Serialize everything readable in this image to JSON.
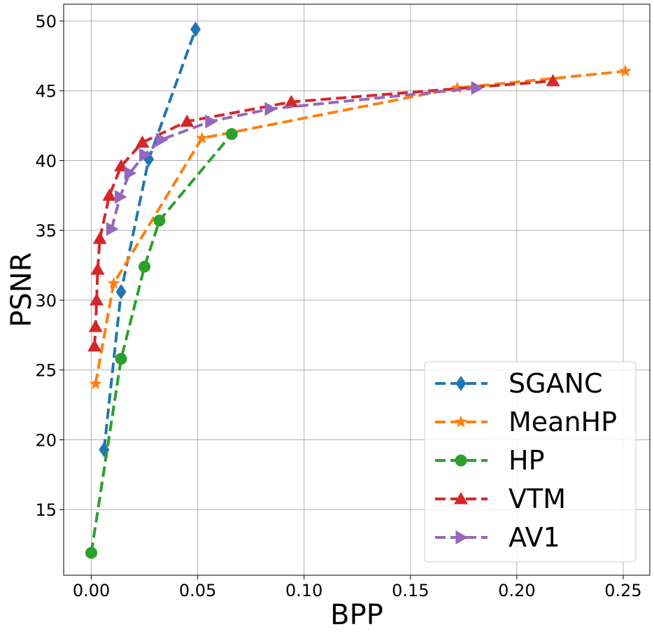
{
  "chart_data": {
    "type": "line",
    "title": "",
    "xlabel": "BPP",
    "ylabel": "PSNR",
    "xlim": [
      -0.013,
      0.2625
    ],
    "ylim": [
      10.3,
      51.2
    ],
    "xticks": [
      0.0,
      0.05,
      0.1,
      0.15,
      0.2,
      0.25
    ],
    "xtick_labels": [
      "0.00",
      "0.05",
      "0.10",
      "0.15",
      "0.20",
      "0.25"
    ],
    "yticks": [
      15,
      20,
      25,
      30,
      35,
      40,
      45,
      50
    ],
    "ytick_labels": [
      "15",
      "20",
      "25",
      "30",
      "35",
      "40",
      "45",
      "50"
    ],
    "grid": true,
    "legend_position": "lower-right",
    "series": [
      {
        "name": "SGANC",
        "color": "#1f77b4",
        "marker": "diamond",
        "x": [
          0.006,
          0.014,
          0.027,
          0.049
        ],
        "y": [
          19.3,
          30.6,
          40.1,
          49.4
        ]
      },
      {
        "name": "MeanHP",
        "color": "#ff7f0e",
        "marker": "star",
        "x": [
          0.002,
          0.0105,
          0.052,
          0.172,
          0.251
        ],
        "y": [
          24.0,
          31.2,
          41.6,
          45.2,
          46.4
        ]
      },
      {
        "name": "HP",
        "color": "#2ca02c",
        "marker": "circle",
        "x": [
          0.0,
          0.014,
          0.025,
          0.032,
          0.066
        ],
        "y": [
          11.9,
          25.8,
          32.4,
          35.7,
          41.9
        ]
      },
      {
        "name": "VTM",
        "color": "#d62728",
        "marker": "triangle-up",
        "x": [
          0.0015,
          0.002,
          0.0025,
          0.003,
          0.004,
          0.0085,
          0.014,
          0.024,
          0.045,
          0.094,
          0.217
        ],
        "y": [
          26.7,
          28.1,
          30.0,
          32.2,
          34.4,
          37.5,
          39.6,
          41.3,
          42.8,
          44.2,
          45.7
        ]
      },
      {
        "name": "AV1",
        "color": "#9467bd",
        "marker": "triangle-right",
        "x": [
          0.0095,
          0.0135,
          0.018,
          0.025,
          0.033,
          0.056,
          0.084,
          0.181
        ],
        "y": [
          35.1,
          37.4,
          39.1,
          40.4,
          41.5,
          42.8,
          43.7,
          45.2
        ]
      }
    ]
  }
}
